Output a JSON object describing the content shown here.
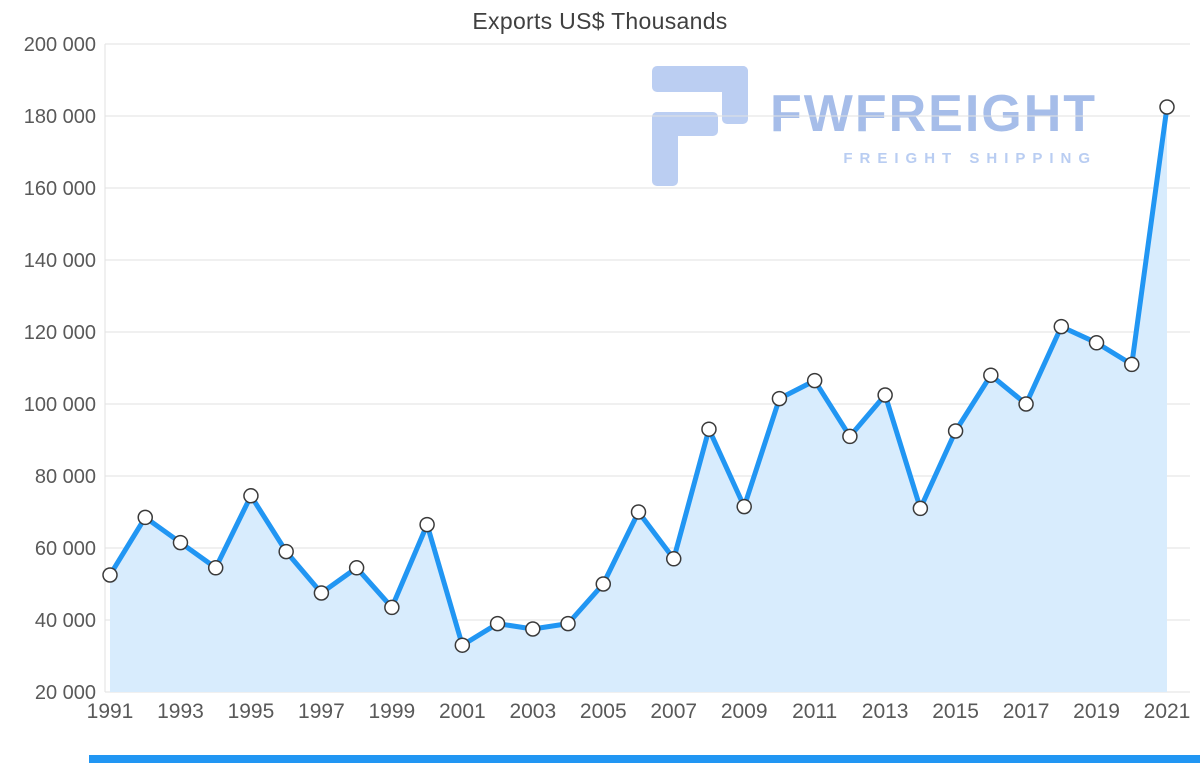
{
  "chart_data": {
    "type": "area",
    "title": "Exports US$ Thousands",
    "x": [
      1991,
      1992,
      1993,
      1994,
      1995,
      1996,
      1997,
      1998,
      1999,
      2000,
      2001,
      2002,
      2003,
      2004,
      2005,
      2006,
      2007,
      2008,
      2009,
      2010,
      2011,
      2012,
      2013,
      2014,
      2015,
      2016,
      2017,
      2018,
      2019,
      2020,
      2021
    ],
    "values": [
      52500,
      68500,
      61500,
      54500,
      74500,
      59000,
      47500,
      54500,
      43500,
      66500,
      33000,
      39000,
      37500,
      39000,
      50000,
      70000,
      57000,
      93000,
      71500,
      101500,
      106500,
      91000,
      102500,
      71000,
      92500,
      108000,
      100000,
      121500,
      117000,
      111000,
      182500
    ],
    "xlabel": "",
    "ylabel": "",
    "ylim": [
      20000,
      200000
    ],
    "y_tick_step": 20000,
    "x_label_every_odd_year": true,
    "grid": "horizontal",
    "legend": "none",
    "line_color": "#2196f3",
    "area_color": "#d8ecfd",
    "marker_fill": "#ffffff",
    "marker_stroke": "#3a3a3a",
    "grid_color": "#e2e2e2",
    "axis_text_color": "#595959",
    "y_tick_labels": [
      "20 000",
      "40 000",
      "60 000",
      "80 000",
      "100 000",
      "120 000",
      "140 000",
      "160 000",
      "180 000",
      "200 000"
    ],
    "x_tick_labels": [
      "1991",
      "1993",
      "1995",
      "1997",
      "1999",
      "2001",
      "2003",
      "2005",
      "2007",
      "2009",
      "2011",
      "2013",
      "2015",
      "2017",
      "2019",
      "2021"
    ]
  },
  "watermark": {
    "brand": "FWFREIGHT",
    "tagline": "FREIGHT SHIPPING",
    "brand_color": "#a6bde9",
    "tagline_color": "#b9cdf2",
    "icon_color": "#b0c6f0"
  },
  "footer": {
    "bar_color": "#2196f3"
  }
}
